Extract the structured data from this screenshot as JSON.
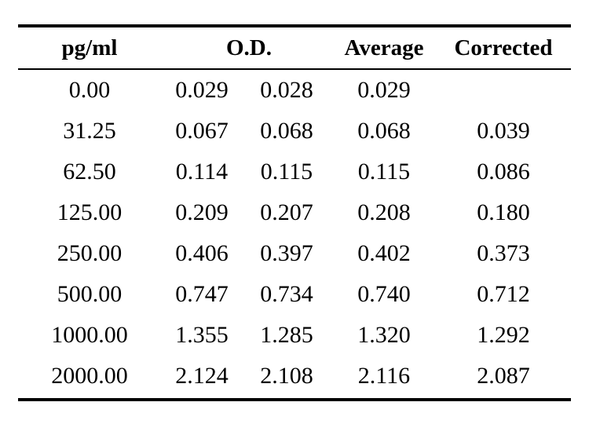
{
  "table": {
    "headers": {
      "pg": "pg/ml",
      "od": "O.D.",
      "average": "Average",
      "corrected": "Corrected"
    },
    "rows": [
      {
        "pg": "0.00",
        "od1": "0.029",
        "od2": "0.028",
        "average": "0.029",
        "corrected": ""
      },
      {
        "pg": "31.25",
        "od1": "0.067",
        "od2": "0.068",
        "average": "0.068",
        "corrected": "0.039"
      },
      {
        "pg": "62.50",
        "od1": "0.114",
        "od2": "0.115",
        "average": "0.115",
        "corrected": "0.086"
      },
      {
        "pg": "125.00",
        "od1": "0.209",
        "od2": "0.207",
        "average": "0.208",
        "corrected": "0.180"
      },
      {
        "pg": "250.00",
        "od1": "0.406",
        "od2": "0.397",
        "average": "0.402",
        "corrected": "0.373"
      },
      {
        "pg": "500.00",
        "od1": "0.747",
        "od2": "0.734",
        "average": "0.740",
        "corrected": "0.712"
      },
      {
        "pg": "1000.00",
        "od1": "1.355",
        "od2": "1.285",
        "average": "1.320",
        "corrected": "1.292"
      },
      {
        "pg": "2000.00",
        "od1": "2.124",
        "od2": "2.108",
        "average": "2.116",
        "corrected": "2.087"
      }
    ]
  }
}
